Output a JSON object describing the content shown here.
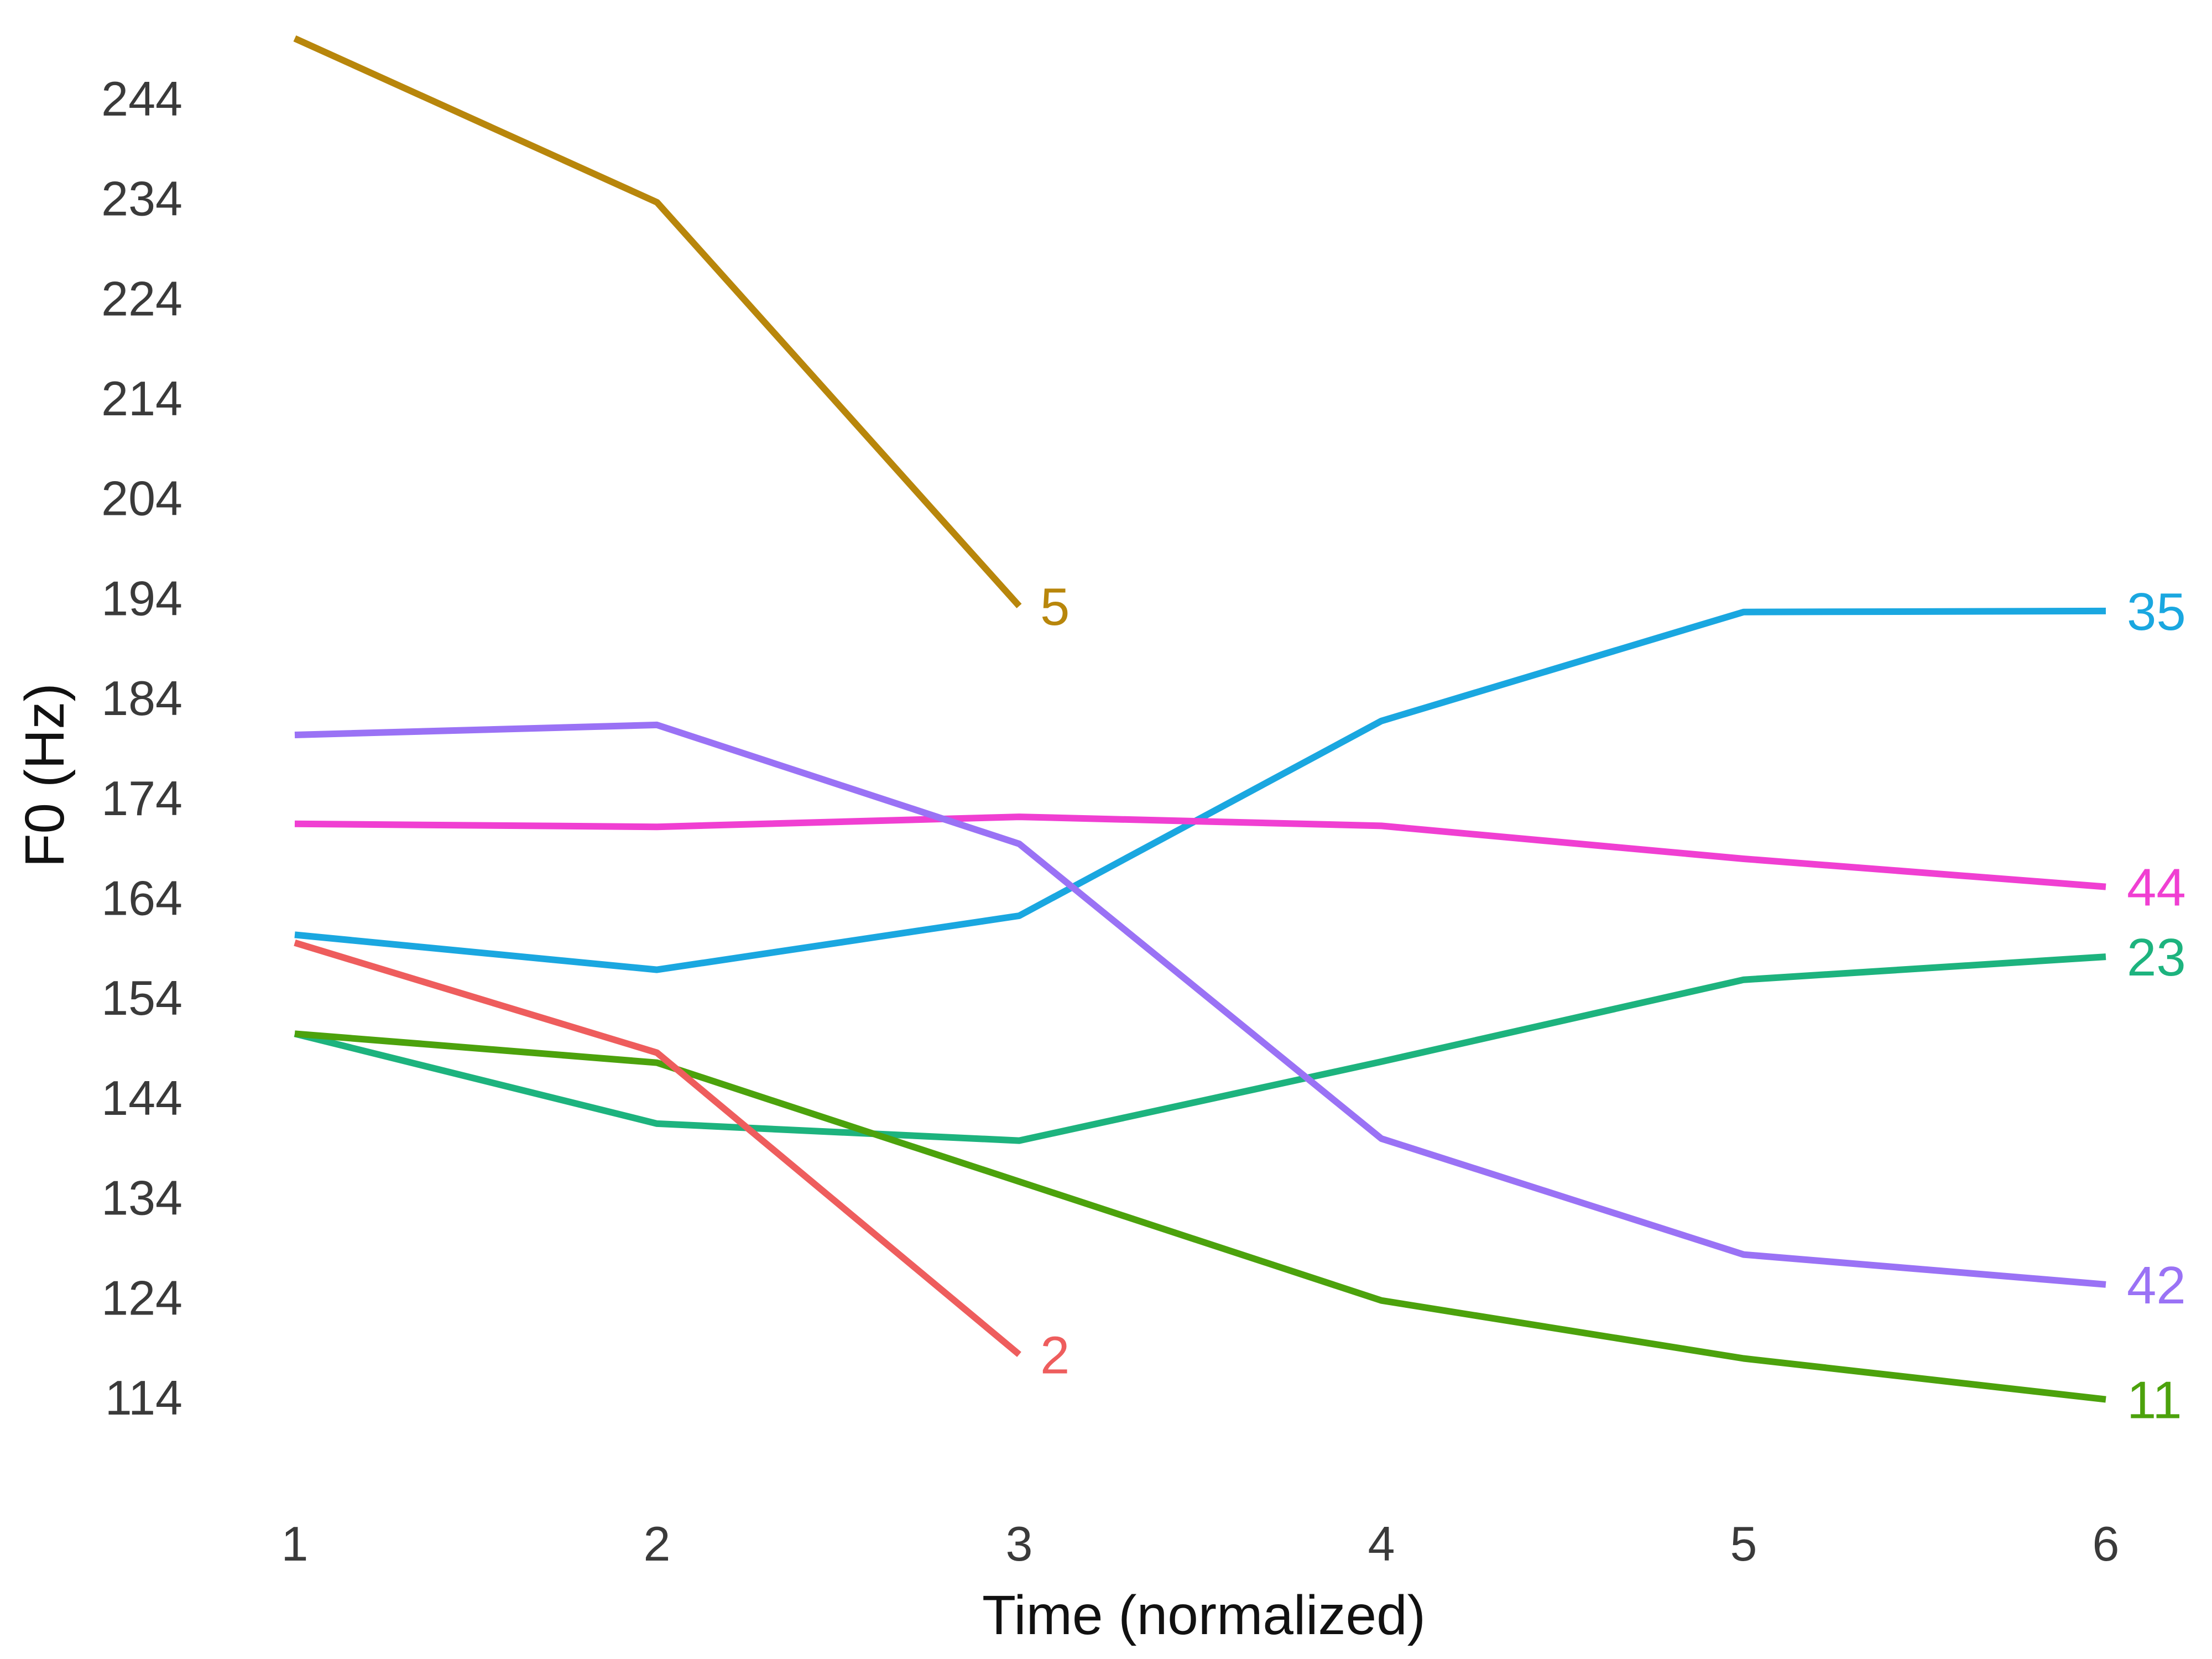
{
  "chart_data": {
    "type": "line",
    "title": "",
    "xlabel": "Time (normalized)",
    "ylabel": "F0 (Hz)",
    "xlim": [
      0.75,
      6.15
    ],
    "ylim": [
      108,
      257
    ],
    "x_ticks": [
      1,
      2,
      3,
      4,
      5,
      6
    ],
    "y_ticks": [
      114,
      124,
      134,
      144,
      154,
      164,
      174,
      184,
      194,
      204,
      214,
      224,
      234,
      244
    ],
    "grid": false,
    "legend": "none; series labeled at line ends",
    "series": [
      {
        "name": "5",
        "color": "#B8860B",
        "x": [
          1,
          2,
          3
        ],
        "values": [
          250.0,
          233.6,
          193.2
        ]
      },
      {
        "name": "35",
        "color": "#1AA7E0",
        "x": [
          1,
          2,
          3,
          4,
          5,
          6
        ],
        "values": [
          160.3,
          156.8,
          162.2,
          181.7,
          192.6,
          192.7
        ]
      },
      {
        "name": "44",
        "color": "#F03FD2",
        "x": [
          1,
          2,
          3,
          4,
          5,
          6
        ],
        "values": [
          171.4,
          171.1,
          172.1,
          171.2,
          167.9,
          165.1
        ]
      },
      {
        "name": "23",
        "color": "#1DB37E",
        "x": [
          1,
          2,
          3,
          4,
          5,
          6
        ],
        "values": [
          150.4,
          141.4,
          139.7,
          147.6,
          155.8,
          158.1
        ]
      },
      {
        "name": "42",
        "color": "#9A72F5",
        "x": [
          1,
          2,
          3,
          4,
          5,
          6
        ],
        "values": [
          180.3,
          181.3,
          169.4,
          139.9,
          128.3,
          125.3
        ]
      },
      {
        "name": "11",
        "color": "#4CA20C",
        "x": [
          1,
          2,
          3,
          4,
          5,
          6
        ],
        "values": [
          150.4,
          147.5,
          135.6,
          123.7,
          117.9,
          113.8
        ]
      },
      {
        "name": "2",
        "color": "#EE5D5D",
        "x": [
          1,
          2,
          3
        ],
        "values": [
          159.5,
          148.5,
          118.3
        ]
      }
    ]
  }
}
